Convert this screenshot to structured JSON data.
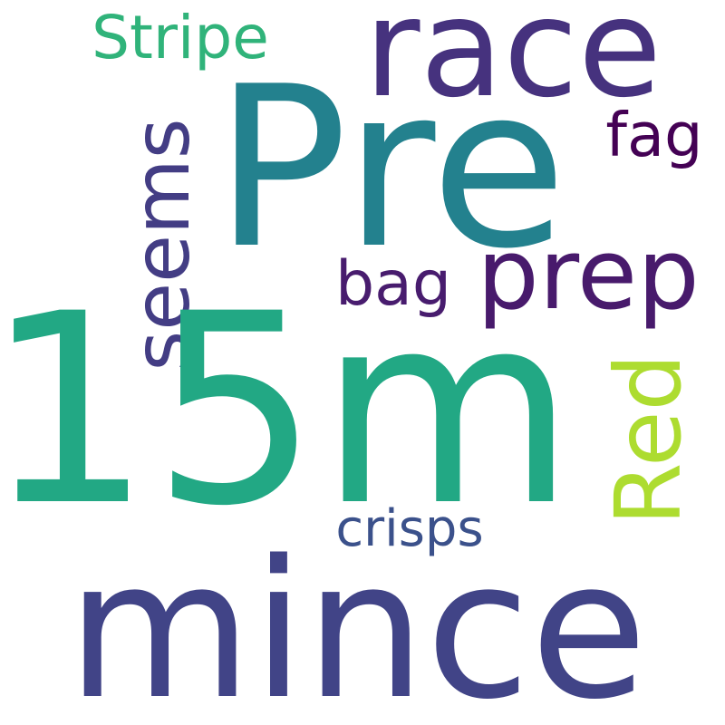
{
  "words": [
    {
      "text": "race",
      "color": "#46327e"
    },
    {
      "text": "Pre",
      "color": "#23818e"
    },
    {
      "text": "Stripe",
      "color": "#30b37a"
    },
    {
      "text": "fag",
      "color": "#440154"
    },
    {
      "text": "seems",
      "color": "#433d84"
    },
    {
      "text": "bag",
      "color": "#481c6e"
    },
    {
      "text": "prep",
      "color": "#481a6c"
    },
    {
      "text": "15m",
      "color": "#22a884"
    },
    {
      "text": "Red",
      "color": "#addc30"
    },
    {
      "text": "crisps",
      "color": "#3b518b"
    },
    {
      "text": "mince",
      "color": "#414487"
    }
  ]
}
